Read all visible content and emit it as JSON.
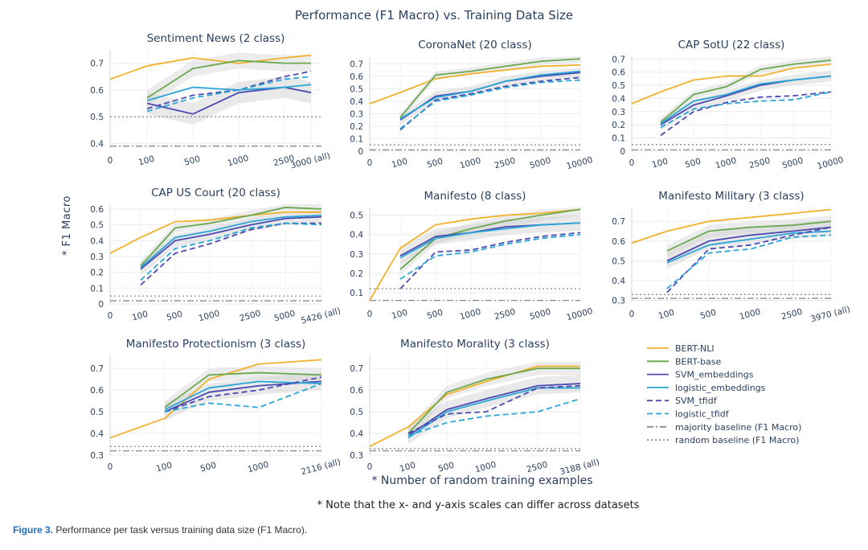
{
  "title": "Performance (F1 Macro) vs. Training Data Size",
  "y_axis_label": "* F1 Macro",
  "x_axis_label": "* Number of random training examples",
  "note": "* Note that the x- and y-axis scales can differ across datasets",
  "caption": {
    "label": "Figure 3.",
    "text": "Performance per task versus training data size (F1 Macro)."
  },
  "legend": [
    {
      "name": "BERT-NLI",
      "color": "#f2b12c",
      "dash": "solid"
    },
    {
      "name": "BERT-base",
      "color": "#6aa84f",
      "dash": "solid"
    },
    {
      "name": "SVM_embeddings",
      "color": "#4a4ab0",
      "dash": "solid"
    },
    {
      "name": "logistic_embeddings",
      "color": "#2aa6d6",
      "dash": "solid"
    },
    {
      "name": "SVM_tfidf",
      "color": "#4a4ab0",
      "dash": "dash"
    },
    {
      "name": "logistic_tfidf",
      "color": "#2aa6d6",
      "dash": "dash"
    },
    {
      "name": "majority baseline (F1 Macro)",
      "color": "#888888",
      "dash": "dashdot"
    },
    {
      "name": "random baseline (F1 Macro)",
      "color": "#888888",
      "dash": "dot"
    }
  ],
  "chart_data": [
    {
      "type": "line",
      "title": "Sentiment News (2 class)",
      "x": [
        "0",
        "100",
        "500",
        "1000",
        "2500",
        "3000 (all)"
      ],
      "y_ticks": [
        "0.4",
        "0.5",
        "0.6",
        "0.7"
      ],
      "ylim": [
        0.38,
        0.75
      ],
      "series": [
        {
          "name": "BERT-NLI",
          "values": [
            0.64,
            0.69,
            0.72,
            0.7,
            0.72,
            0.73
          ]
        },
        {
          "name": "BERT-base",
          "values": [
            null,
            0.57,
            0.68,
            0.71,
            0.7,
            0.7
          ]
        },
        {
          "name": "SVM_embeddings",
          "values": [
            null,
            0.55,
            0.51,
            0.59,
            0.61,
            0.59
          ]
        },
        {
          "name": "logistic_embeddings",
          "values": [
            null,
            0.56,
            0.61,
            0.6,
            0.61,
            0.62
          ]
        },
        {
          "name": "SVM_tfidf",
          "values": [
            null,
            0.53,
            0.58,
            0.6,
            0.65,
            0.67
          ]
        },
        {
          "name": "logistic_tfidf",
          "values": [
            null,
            0.52,
            0.57,
            0.6,
            0.64,
            0.65
          ]
        }
      ],
      "baselines": {
        "majority": 0.39,
        "random": 0.5
      }
    },
    {
      "type": "line",
      "title": "CoronaNet (20 class)",
      "x": [
        "0",
        "100",
        "500",
        "1000",
        "2500",
        "5000",
        "10000"
      ],
      "y_ticks": [
        "0",
        "0.1",
        "0.2",
        "0.3",
        "0.4",
        "0.5",
        "0.6",
        "0.7"
      ],
      "ylim": [
        0,
        0.76
      ],
      "series": [
        {
          "name": "BERT-NLI",
          "values": [
            0.38,
            0.47,
            0.58,
            0.62,
            0.65,
            0.68,
            0.69
          ]
        },
        {
          "name": "BERT-base",
          "values": [
            null,
            0.27,
            0.61,
            0.64,
            0.68,
            0.72,
            0.74
          ]
        },
        {
          "name": "SVM_embeddings",
          "values": [
            null,
            0.25,
            0.44,
            0.48,
            0.56,
            0.6,
            0.63
          ]
        },
        {
          "name": "logistic_embeddings",
          "values": [
            null,
            0.26,
            0.43,
            0.48,
            0.56,
            0.61,
            0.64
          ]
        },
        {
          "name": "SVM_tfidf",
          "values": [
            null,
            0.17,
            0.41,
            0.46,
            0.52,
            0.56,
            0.59
          ]
        },
        {
          "name": "logistic_tfidf",
          "values": [
            null,
            0.18,
            0.4,
            0.45,
            0.51,
            0.55,
            0.57
          ]
        }
      ],
      "baselines": {
        "majority": 0.01,
        "random": 0.05
      }
    },
    {
      "type": "line",
      "title": "CAP SotU (22 class)",
      "x": [
        "0",
        "100",
        "500",
        "1000",
        "2500",
        "5000",
        "10000"
      ],
      "y_ticks": [
        "0",
        "0.1",
        "0.2",
        "0.3",
        "0.4",
        "0.5",
        "0.6",
        "0.7"
      ],
      "ylim": [
        0,
        0.72
      ],
      "series": [
        {
          "name": "BERT-NLI",
          "values": [
            0.36,
            0.45,
            0.54,
            0.57,
            0.57,
            0.63,
            0.66
          ]
        },
        {
          "name": "BERT-base",
          "values": [
            null,
            0.22,
            0.43,
            0.49,
            0.62,
            0.66,
            0.69
          ]
        },
        {
          "name": "SVM_embeddings",
          "values": [
            null,
            0.2,
            0.35,
            0.42,
            0.5,
            0.54,
            0.57
          ]
        },
        {
          "name": "logistic_embeddings",
          "values": [
            null,
            0.21,
            0.38,
            0.43,
            0.51,
            0.54,
            0.57
          ]
        },
        {
          "name": "SVM_tfidf",
          "values": [
            null,
            0.12,
            0.3,
            0.37,
            0.41,
            0.42,
            0.45
          ]
        },
        {
          "name": "logistic_tfidf",
          "values": [
            null,
            0.18,
            0.32,
            0.36,
            0.38,
            0.39,
            0.45
          ]
        }
      ],
      "baselines": {
        "majority": 0.01,
        "random": 0.05
      }
    },
    {
      "type": "line",
      "title": "CAP US Court (20 class)",
      "x": [
        "0",
        "100",
        "500",
        "1000",
        "2500",
        "5000",
        "5426 (all)"
      ],
      "y_ticks": [
        "0",
        "0.1",
        "0.2",
        "0.3",
        "0.4",
        "0.5",
        "0.6"
      ],
      "ylim": [
        0,
        0.63
      ],
      "series": [
        {
          "name": "BERT-NLI",
          "values": [
            0.32,
            0.42,
            0.52,
            0.53,
            0.56,
            0.58,
            0.58
          ]
        },
        {
          "name": "BERT-base",
          "values": [
            null,
            0.24,
            0.48,
            0.51,
            0.56,
            0.61,
            0.6
          ]
        },
        {
          "name": "SVM_embeddings",
          "values": [
            null,
            0.22,
            0.4,
            0.44,
            0.5,
            0.54,
            0.55
          ]
        },
        {
          "name": "logistic_embeddings",
          "values": [
            null,
            0.23,
            0.42,
            0.46,
            0.52,
            0.55,
            0.56
          ]
        },
        {
          "name": "SVM_tfidf",
          "values": [
            null,
            0.12,
            0.32,
            0.38,
            0.47,
            0.51,
            0.51
          ]
        },
        {
          "name": "logistic_tfidf",
          "values": [
            null,
            0.15,
            0.35,
            0.4,
            0.48,
            0.51,
            0.5
          ]
        }
      ],
      "baselines": {
        "majority": 0.02,
        "random": 0.05
      }
    },
    {
      "type": "line",
      "title": "Manifesto (8 class)",
      "x": [
        "0",
        "100",
        "500",
        "1000",
        "2500",
        "5000",
        "10000"
      ],
      "y_ticks": [
        "0.1",
        "0.2",
        "0.3",
        "0.4",
        "0.5"
      ],
      "ylim": [
        0.05,
        0.54
      ],
      "series": [
        {
          "name": "BERT-NLI",
          "values": [
            0.06,
            0.33,
            0.45,
            0.48,
            0.5,
            0.51,
            0.53
          ]
        },
        {
          "name": "BERT-base",
          "values": [
            null,
            0.22,
            0.38,
            0.43,
            0.47,
            0.5,
            0.53
          ]
        },
        {
          "name": "SVM_embeddings",
          "values": [
            null,
            0.29,
            0.39,
            0.41,
            0.44,
            0.45,
            0.46
          ]
        },
        {
          "name": "logistic_embeddings",
          "values": [
            null,
            0.28,
            0.38,
            0.41,
            0.43,
            0.45,
            0.46
          ]
        },
        {
          "name": "SVM_tfidf",
          "values": [
            null,
            0.12,
            0.31,
            0.32,
            0.36,
            0.39,
            0.41
          ]
        },
        {
          "name": "logistic_tfidf",
          "values": [
            null,
            0.17,
            0.29,
            0.31,
            0.35,
            0.38,
            0.4
          ]
        }
      ],
      "baselines": {
        "majority": 0.06,
        "random": 0.12
      }
    },
    {
      "type": "line",
      "title": "Manifesto Military (3 class)",
      "x": [
        "0",
        "100",
        "500",
        "1000",
        "2500",
        "3970 (all)"
      ],
      "y_ticks": [
        "0.3",
        "0.4",
        "0.5",
        "0.6",
        "0.7"
      ],
      "ylim": [
        0.29,
        0.77
      ],
      "series": [
        {
          "name": "BERT-NLI",
          "values": [
            0.59,
            0.65,
            0.7,
            0.72,
            0.74,
            0.76
          ]
        },
        {
          "name": "BERT-base",
          "values": [
            null,
            0.55,
            0.65,
            0.67,
            0.68,
            0.7
          ]
        },
        {
          "name": "SVM_embeddings",
          "values": [
            null,
            0.5,
            0.6,
            0.63,
            0.65,
            0.67
          ]
        },
        {
          "name": "logistic_embeddings",
          "values": [
            null,
            0.49,
            0.58,
            0.61,
            0.64,
            0.65
          ]
        },
        {
          "name": "SVM_tfidf",
          "values": [
            null,
            0.34,
            0.56,
            0.58,
            0.63,
            0.67
          ]
        },
        {
          "name": "logistic_tfidf",
          "values": [
            null,
            0.36,
            0.54,
            0.56,
            0.62,
            0.63
          ]
        }
      ],
      "baselines": {
        "majority": 0.31,
        "random": 0.33
      }
    },
    {
      "type": "line",
      "title": "Manifesto Protectionism (3 class)",
      "x": [
        "0",
        "100",
        "500",
        "1000",
        "2116 (all)"
      ],
      "y_ticks": [
        "0.3",
        "0.4",
        "0.5",
        "0.6",
        "0.7"
      ],
      "ylim": [
        0.3,
        0.76
      ],
      "series": [
        {
          "name": "BERT-NLI",
          "values": [
            0.38,
            0.47,
            0.65,
            0.72,
            0.74
          ]
        },
        {
          "name": "BERT-base",
          "values": [
            null,
            0.52,
            0.67,
            0.68,
            0.67
          ]
        },
        {
          "name": "SVM_embeddings",
          "values": [
            null,
            0.5,
            0.59,
            0.62,
            0.64
          ]
        },
        {
          "name": "logistic_embeddings",
          "values": [
            null,
            0.51,
            0.61,
            0.64,
            0.63
          ]
        },
        {
          "name": "SVM_tfidf",
          "values": [
            null,
            0.5,
            0.57,
            0.6,
            0.66
          ]
        },
        {
          "name": "logistic_tfidf",
          "values": [
            null,
            0.5,
            0.54,
            0.52,
            0.63
          ]
        }
      ],
      "baselines": {
        "majority": 0.32,
        "random": 0.34
      }
    },
    {
      "type": "line",
      "title": "Manifesto Morality (3 class)",
      "x": [
        "0",
        "100",
        "500",
        "1000",
        "2500",
        "3188 (all)"
      ],
      "y_ticks": [
        "0.3",
        "0.4",
        "0.5",
        "0.6",
        "0.7"
      ],
      "ylim": [
        0.3,
        0.76
      ],
      "series": [
        {
          "name": "BERT-NLI",
          "values": [
            0.34,
            0.43,
            0.58,
            0.64,
            0.71,
            0.71
          ]
        },
        {
          "name": "BERT-base",
          "values": [
            null,
            0.4,
            0.59,
            0.65,
            0.7,
            0.7
          ]
        },
        {
          "name": "SVM_embeddings",
          "values": [
            null,
            0.39,
            0.51,
            0.56,
            0.62,
            0.63
          ]
        },
        {
          "name": "logistic_embeddings",
          "values": [
            null,
            0.38,
            0.5,
            0.55,
            0.61,
            0.61
          ]
        },
        {
          "name": "SVM_tfidf",
          "values": [
            null,
            0.4,
            0.49,
            0.5,
            0.61,
            0.62
          ]
        },
        {
          "name": "logistic_tfidf",
          "values": [
            null,
            0.39,
            0.45,
            0.48,
            0.5,
            0.56
          ]
        }
      ],
      "baselines": {
        "majority": 0.32,
        "random": 0.33
      }
    }
  ]
}
